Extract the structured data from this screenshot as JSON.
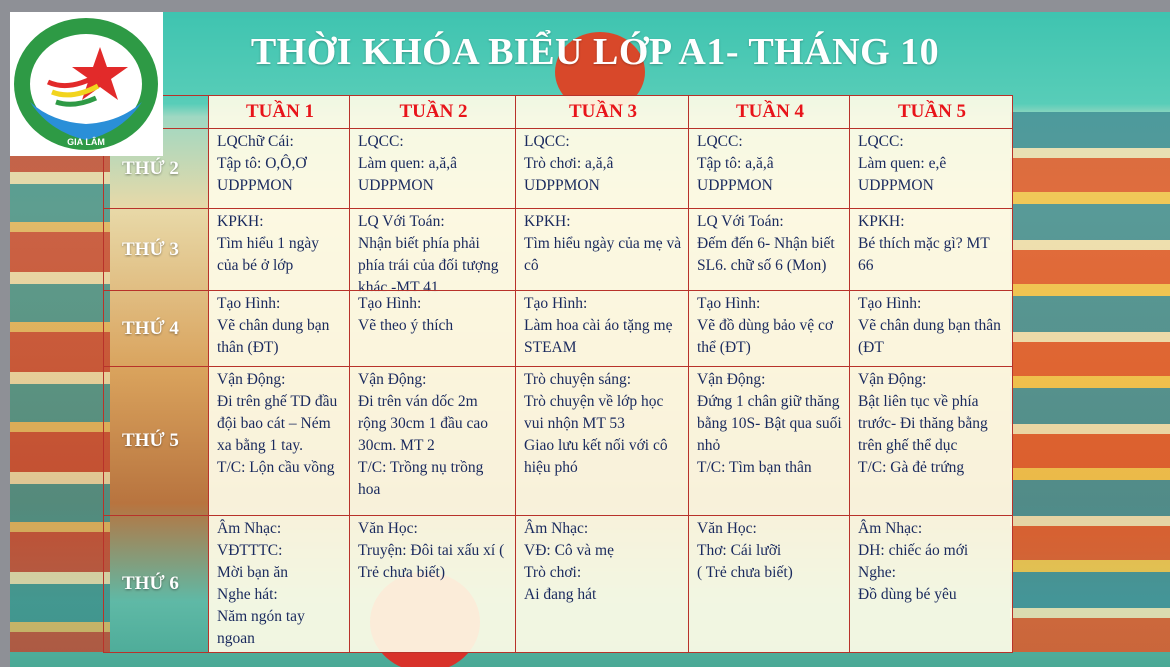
{
  "logo": {
    "text_top": "TRƯỜNG MẦM NON SAO KHUÊ",
    "text_bottom": "GIA LÂM"
  },
  "title": "THỜI KHÓA BIỂU LỚP A1- THÁNG 10",
  "weeks": [
    "TUẦN 1",
    "TUẦN 2",
    "TUẦN 3",
    "TUẦN 4",
    "TUẦN 5"
  ],
  "days": [
    {
      "label": "THỨ 2",
      "cells": [
        "LQChữ Cái:\nTập tô: O,Ô,Ơ\nUDPPMON",
        "LQCC:\nLàm quen: a,ă,â\nUDPPMON",
        "LQCC:\nTrò chơi: a,ă,â\nUDPPMON",
        "LQCC:\nTập tô: a,ă,â\nUDPPMON",
        "LQCC:\nLàm quen: e,ê\nUDPPMON"
      ]
    },
    {
      "label": "THỨ 3",
      "cells": [
        "KPKH:\nTìm hiểu 1 ngày của bé ở lớp",
        "LQ Với Toán:\nNhận biết phía phải phía trái của đối tượng khác -MT 41",
        "KPKH:\nTìm hiểu ngày của mẹ và cô",
        "LQ Với Toán:\nĐếm đến 6- Nhận biết SL6. chữ số 6 (Mon)",
        "KPKH:\nBé thích mặc gì? MT 66"
      ]
    },
    {
      "label": "THỨ 4",
      "cells": [
        "Tạo Hình:\nVẽ chân dung bạn thân (ĐT)",
        "Tạo Hình:\nVẽ theo ý thích",
        "Tạo Hình:\nLàm hoa cài áo tặng mẹ STEAM",
        "Tạo Hình:\nVẽ đồ dùng bảo vệ cơ thể (ĐT)",
        "Tạo Hình:\nVẽ chân dung bạn thân (ĐT"
      ]
    },
    {
      "label": "THỨ 5",
      "cells": [
        "Vận Động:\nĐi trên ghế TD đầu đội bao cát – Ném xa bằng 1 tay.\nT/C: Lộn cầu vồng",
        "Vận Động:\nĐi trên ván dốc 2m rộng 30cm 1 đầu cao 30cm. MT 2\nT/C: Trồng nụ trồng hoa",
        "Trò chuyện sáng:\nTrò chuyện về lớp học vui nhộn MT 53\nGiao lưu kết nối với cô hiệu phó",
        "Vận Động:\nĐứng 1 chân giữ thăng bằng 10S- Bật qua suối nhỏ\nT/C: Tìm bạn thân",
        "Vận Động:\nBật liên tục về phía trước- Đi thăng bằng trên ghế thể dục\nT/C: Gà đẻ trứng"
      ]
    },
    {
      "label": "THỨ 6",
      "cells": [
        "Âm Nhạc:\nVĐTTTC:\nMời bạn ăn\nNghe hát:\nNăm ngón tay ngoan",
        "Văn Học:\nTruyện: Đôi tai xấu xí ( Trẻ chưa biết)",
        "Âm Nhạc:\nVĐ: Cô và mẹ\nTrò chơi:\nAi đang hát",
        "Văn Học:\nThơ: Cái lưỡi\n( Trẻ chưa biết)",
        "Âm Nhạc:\nDH: chiếc áo mới\nNghe:\nĐồ dùng bé yêu"
      ]
    }
  ],
  "colors": {
    "border": "#b8322a",
    "week_header": "#e8141a",
    "cell_text": "#1a2a5e",
    "title": "#ffffff"
  }
}
